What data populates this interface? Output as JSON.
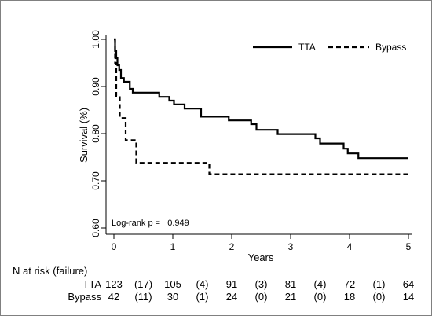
{
  "chart_data": {
    "type": "line",
    "xlabel": "Years",
    "ylabel": "Survival (%)",
    "xlim": [
      0,
      5
    ],
    "ylim": [
      0.6,
      1.0
    ],
    "x_ticks": [
      "0",
      "1",
      "2",
      "3",
      "4",
      "5"
    ],
    "y_ticks": [
      "0.60",
      "0.70",
      "0.80",
      "0.90",
      "1.00"
    ],
    "grid": false,
    "legend_position": "top-right",
    "annotation": "Log-rank p =   0.949",
    "series": [
      {
        "name": "TTA",
        "style": "solid",
        "color": "#000000",
        "steps": [
          [
            0,
            1.0
          ],
          [
            0.02,
            0.975
          ],
          [
            0.04,
            0.96
          ],
          [
            0.06,
            0.945
          ],
          [
            0.09,
            0.935
          ],
          [
            0.12,
            0.918
          ],
          [
            0.17,
            0.91
          ],
          [
            0.27,
            0.895
          ],
          [
            0.32,
            0.887
          ],
          [
            0.77,
            0.878
          ],
          [
            0.94,
            0.87
          ],
          [
            1.02,
            0.862
          ],
          [
            1.2,
            0.853
          ],
          [
            1.48,
            0.836
          ],
          [
            1.95,
            0.828
          ],
          [
            2.33,
            0.82
          ],
          [
            2.42,
            0.808
          ],
          [
            2.78,
            0.799
          ],
          [
            3.42,
            0.79
          ],
          [
            3.5,
            0.779
          ],
          [
            3.9,
            0.768
          ],
          [
            3.97,
            0.758
          ],
          [
            4.15,
            0.748
          ],
          [
            5.0,
            0.748
          ]
        ]
      },
      {
        "name": "Bypass",
        "style": "dashed",
        "color": "#000000",
        "steps": [
          [
            0,
            1.0
          ],
          [
            0.02,
            0.95
          ],
          [
            0.04,
            0.88
          ],
          [
            0.1,
            0.833
          ],
          [
            0.2,
            0.786
          ],
          [
            0.38,
            0.738
          ],
          [
            1.62,
            0.714
          ],
          [
            5.0,
            0.714
          ]
        ]
      }
    ]
  },
  "risk_table": {
    "title": "N at risk (failure)",
    "rows": [
      {
        "label": "TTA",
        "cells": [
          "123",
          "(17)",
          "105",
          "(4)",
          "91",
          "(3)",
          "81",
          "(4)",
          "72",
          "(1)",
          "64"
        ]
      },
      {
        "label": "Bypass",
        "cells": [
          "42",
          "(11)",
          "30",
          "(1)",
          "24",
          "(0)",
          "21",
          "(0)",
          "18",
          "(0)",
          "14"
        ]
      }
    ]
  }
}
